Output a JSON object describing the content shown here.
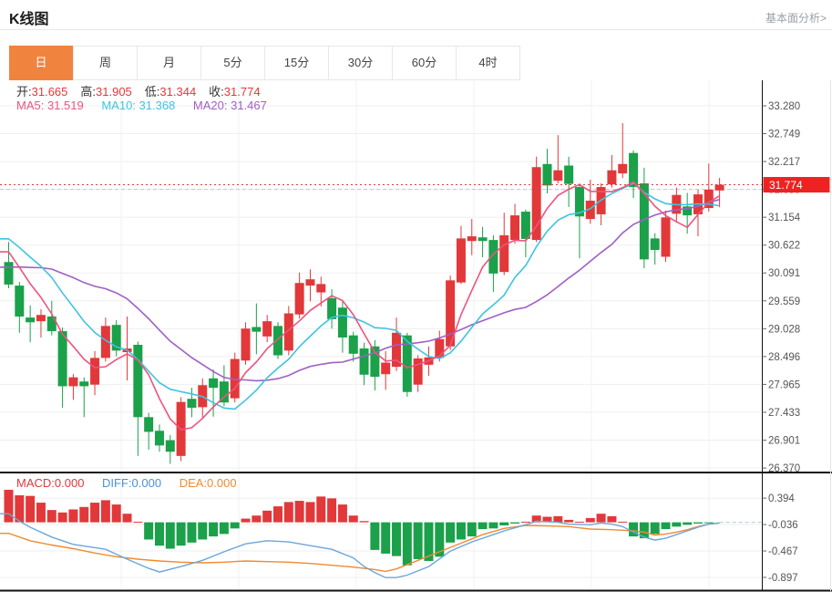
{
  "header": {
    "title": "K线图",
    "link": "基本面分析>"
  },
  "tabs": {
    "items": [
      "日",
      "周",
      "月",
      "5分",
      "15分",
      "30分",
      "60分",
      "4时"
    ],
    "active": "日",
    "active_color": "#f0843f"
  },
  "readout": {
    "open_label": "开:",
    "open": "31.665",
    "high_label": "高:",
    "high": "31.905",
    "low_label": "低:",
    "low": "31.344",
    "close_label": "收:",
    "close": "31.774",
    "ma5": "MA5: 31.519",
    "ma10": "MA10: 31.368",
    "ma20": "MA20: 31.467"
  },
  "macd_readout": {
    "macd": "MACD:0.000",
    "diff": "DIFF:0.000",
    "dea": "DEA:0.000"
  },
  "chart_data": {
    "type": "candlestick",
    "panels": [
      "price",
      "macd"
    ],
    "legend_position": "top-left-overlay",
    "grid": true,
    "price_axis": {
      "side": "right",
      "ticks": [
        {
          "label": "33.280",
          "value": 33.28
        },
        {
          "label": "32.749",
          "value": 32.749
        },
        {
          "label": "32.217",
          "value": 32.217
        },
        {
          "label": "31.685",
          "value": 31.685
        },
        {
          "label": "31.154",
          "value": 31.154
        },
        {
          "label": "30.622",
          "value": 30.622
        },
        {
          "label": "30.091",
          "value": 30.091
        },
        {
          "label": "29.559",
          "value": 29.559
        },
        {
          "label": "29.028",
          "value": 29.028
        },
        {
          "label": "28.496",
          "value": 28.496
        },
        {
          "label": "27.965",
          "value": 27.965
        },
        {
          "label": "27.433",
          "value": 27.433
        },
        {
          "label": "26.901",
          "value": 26.901
        },
        {
          "label": "26.370",
          "value": 26.37
        }
      ],
      "current_price": 31.774,
      "current_price_label": "31.774",
      "reference_dashed_price": 31.685
    },
    "candles": {
      "note": "ohlc = [open, high, low, close]; red when close>=open (CN convention), green otherwise; values estimated from pixels",
      "ohlc": [
        [
          30.3,
          30.68,
          29.8,
          29.87
        ],
        [
          29.85,
          29.92,
          28.95,
          29.26
        ],
        [
          29.24,
          29.47,
          28.77,
          29.15
        ],
        [
          29.17,
          29.4,
          28.86,
          29.29
        ],
        [
          29.26,
          29.56,
          28.9,
          28.98
        ],
        [
          28.98,
          29.05,
          27.52,
          27.93
        ],
        [
          27.93,
          28.16,
          27.67,
          28.1
        ],
        [
          28.02,
          28.1,
          27.34,
          27.93
        ],
        [
          27.96,
          28.6,
          27.76,
          28.47
        ],
        [
          28.47,
          29.24,
          28.4,
          29.08
        ],
        [
          29.1,
          29.19,
          28.5,
          28.61
        ],
        [
          28.58,
          29.26,
          28.04,
          28.65
        ],
        [
          28.72,
          28.78,
          26.6,
          27.34
        ],
        [
          27.34,
          27.42,
          26.72,
          27.06
        ],
        [
          27.08,
          27.2,
          26.68,
          26.8
        ],
        [
          26.9,
          27.0,
          26.45,
          26.68
        ],
        [
          26.6,
          27.72,
          26.5,
          27.63
        ],
        [
          27.69,
          27.9,
          27.34,
          27.52
        ],
        [
          27.53,
          28.08,
          27.33,
          27.95
        ],
        [
          28.08,
          28.25,
          27.35,
          27.9
        ],
        [
          28.02,
          28.33,
          27.55,
          27.62
        ],
        [
          27.7,
          28.57,
          27.62,
          28.45
        ],
        [
          28.42,
          29.15,
          28.34,
          29.03
        ],
        [
          29.06,
          29.51,
          28.54,
          28.97
        ],
        [
          28.88,
          29.29,
          28.77,
          29.17
        ],
        [
          29.08,
          29.15,
          28.45,
          28.52
        ],
        [
          28.61,
          29.46,
          28.52,
          29.32
        ],
        [
          29.3,
          30.1,
          29.22,
          29.9
        ],
        [
          29.85,
          30.16,
          29.55,
          29.97
        ],
        [
          29.72,
          30.02,
          29.45,
          29.88
        ],
        [
          29.61,
          29.78,
          29.03,
          29.21
        ],
        [
          29.43,
          29.56,
          28.57,
          28.86
        ],
        [
          28.9,
          28.97,
          28.4,
          28.55
        ],
        [
          28.65,
          28.76,
          27.95,
          28.15
        ],
        [
          28.69,
          28.81,
          27.85,
          28.11
        ],
        [
          28.16,
          28.6,
          27.86,
          28.38
        ],
        [
          28.3,
          29.24,
          28.22,
          28.95
        ],
        [
          28.9,
          28.95,
          27.73,
          27.82
        ],
        [
          27.96,
          28.52,
          27.82,
          28.46
        ],
        [
          28.34,
          28.69,
          28.13,
          28.48
        ],
        [
          28.47,
          28.99,
          28.4,
          28.83
        ],
        [
          28.69,
          30.04,
          28.62,
          29.95
        ],
        [
          29.91,
          30.99,
          29.88,
          30.75
        ],
        [
          30.7,
          31.12,
          30.43,
          30.79
        ],
        [
          30.77,
          30.97,
          30.39,
          30.7
        ],
        [
          30.72,
          30.81,
          29.73,
          30.08
        ],
        [
          30.11,
          31.24,
          30.05,
          30.81
        ],
        [
          30.72,
          31.41,
          30.65,
          31.19
        ],
        [
          31.26,
          31.3,
          30.39,
          30.74
        ],
        [
          30.72,
          32.31,
          30.68,
          32.11
        ],
        [
          32.17,
          32.46,
          31.61,
          31.76
        ],
        [
          31.85,
          32.72,
          31.8,
          32.05
        ],
        [
          32.14,
          32.31,
          31.35,
          31.79
        ],
        [
          31.73,
          31.8,
          30.37,
          31.17
        ],
        [
          31.12,
          31.87,
          31.03,
          31.47
        ],
        [
          31.21,
          31.8,
          31.0,
          31.73
        ],
        [
          31.78,
          32.34,
          31.72,
          32.05
        ],
        [
          31.99,
          32.95,
          31.9,
          32.17
        ],
        [
          32.38,
          32.43,
          31.52,
          31.73
        ],
        [
          31.8,
          32.1,
          30.18,
          30.35
        ],
        [
          30.75,
          30.85,
          30.25,
          30.53
        ],
        [
          30.4,
          31.28,
          30.3,
          31.15
        ],
        [
          31.22,
          31.72,
          31.05,
          31.58
        ],
        [
          31.36,
          31.62,
          30.84,
          31.19
        ],
        [
          31.21,
          31.68,
          30.79,
          31.59
        ],
        [
          31.33,
          32.18,
          31.26,
          31.68
        ],
        [
          31.665,
          31.905,
          31.344,
          31.774
        ]
      ]
    },
    "ma_lines": {
      "windows": [
        5,
        10,
        20
      ],
      "latest_values": {
        "MA5": 31.519,
        "MA10": 31.368,
        "MA20": 31.467
      },
      "warmup_closes_estimated": [
        29.2,
        29.3,
        29.4,
        29.5,
        29.6,
        29.7,
        29.8,
        29.9,
        30.0,
        30.2,
        30.9,
        31.0,
        31.05,
        31.1,
        30.9,
        30.75,
        30.7,
        30.6,
        30.55
      ]
    },
    "macd": {
      "axis_ticks": [
        {
          "label": "0.394",
          "value": 0.394
        },
        {
          "label": "-0.036",
          "value": -0.036
        },
        {
          "label": "-0.467",
          "value": -0.467
        },
        {
          "label": "-0.897",
          "value": -0.897
        }
      ],
      "latest": {
        "MACD": 0.0,
        "DIFF": 0.0,
        "DEA": 0.0
      },
      "histogram": [
        0.53,
        0.44,
        0.43,
        0.32,
        0.2,
        0.16,
        0.21,
        0.25,
        0.32,
        0.36,
        0.29,
        0.14,
        0.01,
        -0.28,
        -0.38,
        -0.43,
        -0.38,
        -0.33,
        -0.28,
        -0.23,
        -0.19,
        -0.1,
        0.06,
        0.11,
        0.19,
        0.26,
        0.33,
        0.35,
        0.33,
        0.42,
        0.39,
        0.29,
        0.11,
        0.02,
        -0.45,
        -0.51,
        -0.55,
        -0.7,
        -0.6,
        -0.63,
        -0.56,
        -0.33,
        -0.28,
        -0.23,
        -0.11,
        -0.1,
        -0.05,
        -0.02,
        0.01,
        0.11,
        0.09,
        0.1,
        0.04,
        0.01,
        0.07,
        0.14,
        0.1,
        0.01,
        -0.23,
        -0.26,
        -0.19,
        -0.11,
        -0.07,
        -0.04,
        -0.02,
        -0.01,
        0.0
      ],
      "diff_points": [
        [
          0,
          0.14
        ],
        [
          1,
          0.02
        ],
        [
          2,
          -0.08
        ],
        [
          4,
          -0.24
        ],
        [
          6,
          -0.36
        ],
        [
          9,
          -0.44
        ],
        [
          11,
          -0.6
        ],
        [
          13,
          -0.75
        ],
        [
          14,
          -0.81
        ],
        [
          16,
          -0.72
        ],
        [
          18,
          -0.62
        ],
        [
          20,
          -0.48
        ],
        [
          22,
          -0.35
        ],
        [
          24,
          -0.3
        ],
        [
          26,
          -0.32
        ],
        [
          28,
          -0.38
        ],
        [
          30,
          -0.44
        ],
        [
          32,
          -0.58
        ],
        [
          33,
          -0.72
        ],
        [
          34,
          -0.82
        ],
        [
          35,
          -0.9
        ],
        [
          36,
          -0.9
        ],
        [
          37,
          -0.86
        ],
        [
          39,
          -0.72
        ],
        [
          41,
          -0.47
        ],
        [
          43,
          -0.32
        ],
        [
          45,
          -0.2
        ],
        [
          46,
          -0.14
        ],
        [
          48,
          -0.04
        ],
        [
          49,
          0.02
        ],
        [
          51,
          0.0
        ],
        [
          52,
          -0.03
        ],
        [
          54,
          -0.04
        ],
        [
          55,
          -0.01
        ],
        [
          56,
          -0.03
        ],
        [
          57,
          -0.07
        ],
        [
          58,
          -0.16
        ],
        [
          59,
          -0.24
        ],
        [
          60,
          -0.29
        ],
        [
          61,
          -0.26
        ],
        [
          62,
          -0.2
        ],
        [
          63,
          -0.14
        ],
        [
          64,
          -0.08
        ],
        [
          65,
          -0.03
        ],
        [
          66,
          -0.01
        ]
      ],
      "dea_points": [
        [
          0,
          -0.18
        ],
        [
          2,
          -0.3
        ],
        [
          4,
          -0.37
        ],
        [
          6,
          -0.43
        ],
        [
          8,
          -0.5
        ],
        [
          10,
          -0.56
        ],
        [
          12,
          -0.6
        ],
        [
          14,
          -0.63
        ],
        [
          16,
          -0.65
        ],
        [
          18,
          -0.66
        ],
        [
          20,
          -0.65
        ],
        [
          22,
          -0.63
        ],
        [
          24,
          -0.64
        ],
        [
          26,
          -0.65
        ],
        [
          28,
          -0.67
        ],
        [
          30,
          -0.7
        ],
        [
          32,
          -0.73
        ],
        [
          34,
          -0.77
        ],
        [
          35,
          -0.8
        ],
        [
          36,
          -0.76
        ],
        [
          38,
          -0.62
        ],
        [
          40,
          -0.48
        ],
        [
          42,
          -0.34
        ],
        [
          44,
          -0.2
        ],
        [
          46,
          -0.1
        ],
        [
          48,
          -0.05
        ],
        [
          50,
          -0.06
        ],
        [
          52,
          -0.07
        ],
        [
          54,
          -0.11
        ],
        [
          56,
          -0.12
        ],
        [
          57,
          -0.13
        ],
        [
          58,
          -0.14
        ],
        [
          59,
          -0.16
        ],
        [
          60,
          -0.21
        ],
        [
          61,
          -0.19
        ],
        [
          62,
          -0.16
        ],
        [
          63,
          -0.12
        ],
        [
          64,
          -0.07
        ],
        [
          65,
          -0.03
        ],
        [
          66,
          -0.01
        ]
      ]
    },
    "colors": {
      "up": "#e2383a",
      "down": "#1aa14a",
      "ma5": "#ef537e",
      "ma10": "#3fc3e0",
      "ma20": "#a05fc5",
      "diff": "#6aa7dc",
      "dea": "#ef8b31",
      "current_price_line": "#e2383a",
      "reference_line": "#aacde8",
      "badge_bg": "#ee2222",
      "badge_text": "#ffffff",
      "grid": "#efefef",
      "vgrid": "#f2f2f2",
      "axis_text": "#555555",
      "frame": "#111111"
    }
  }
}
